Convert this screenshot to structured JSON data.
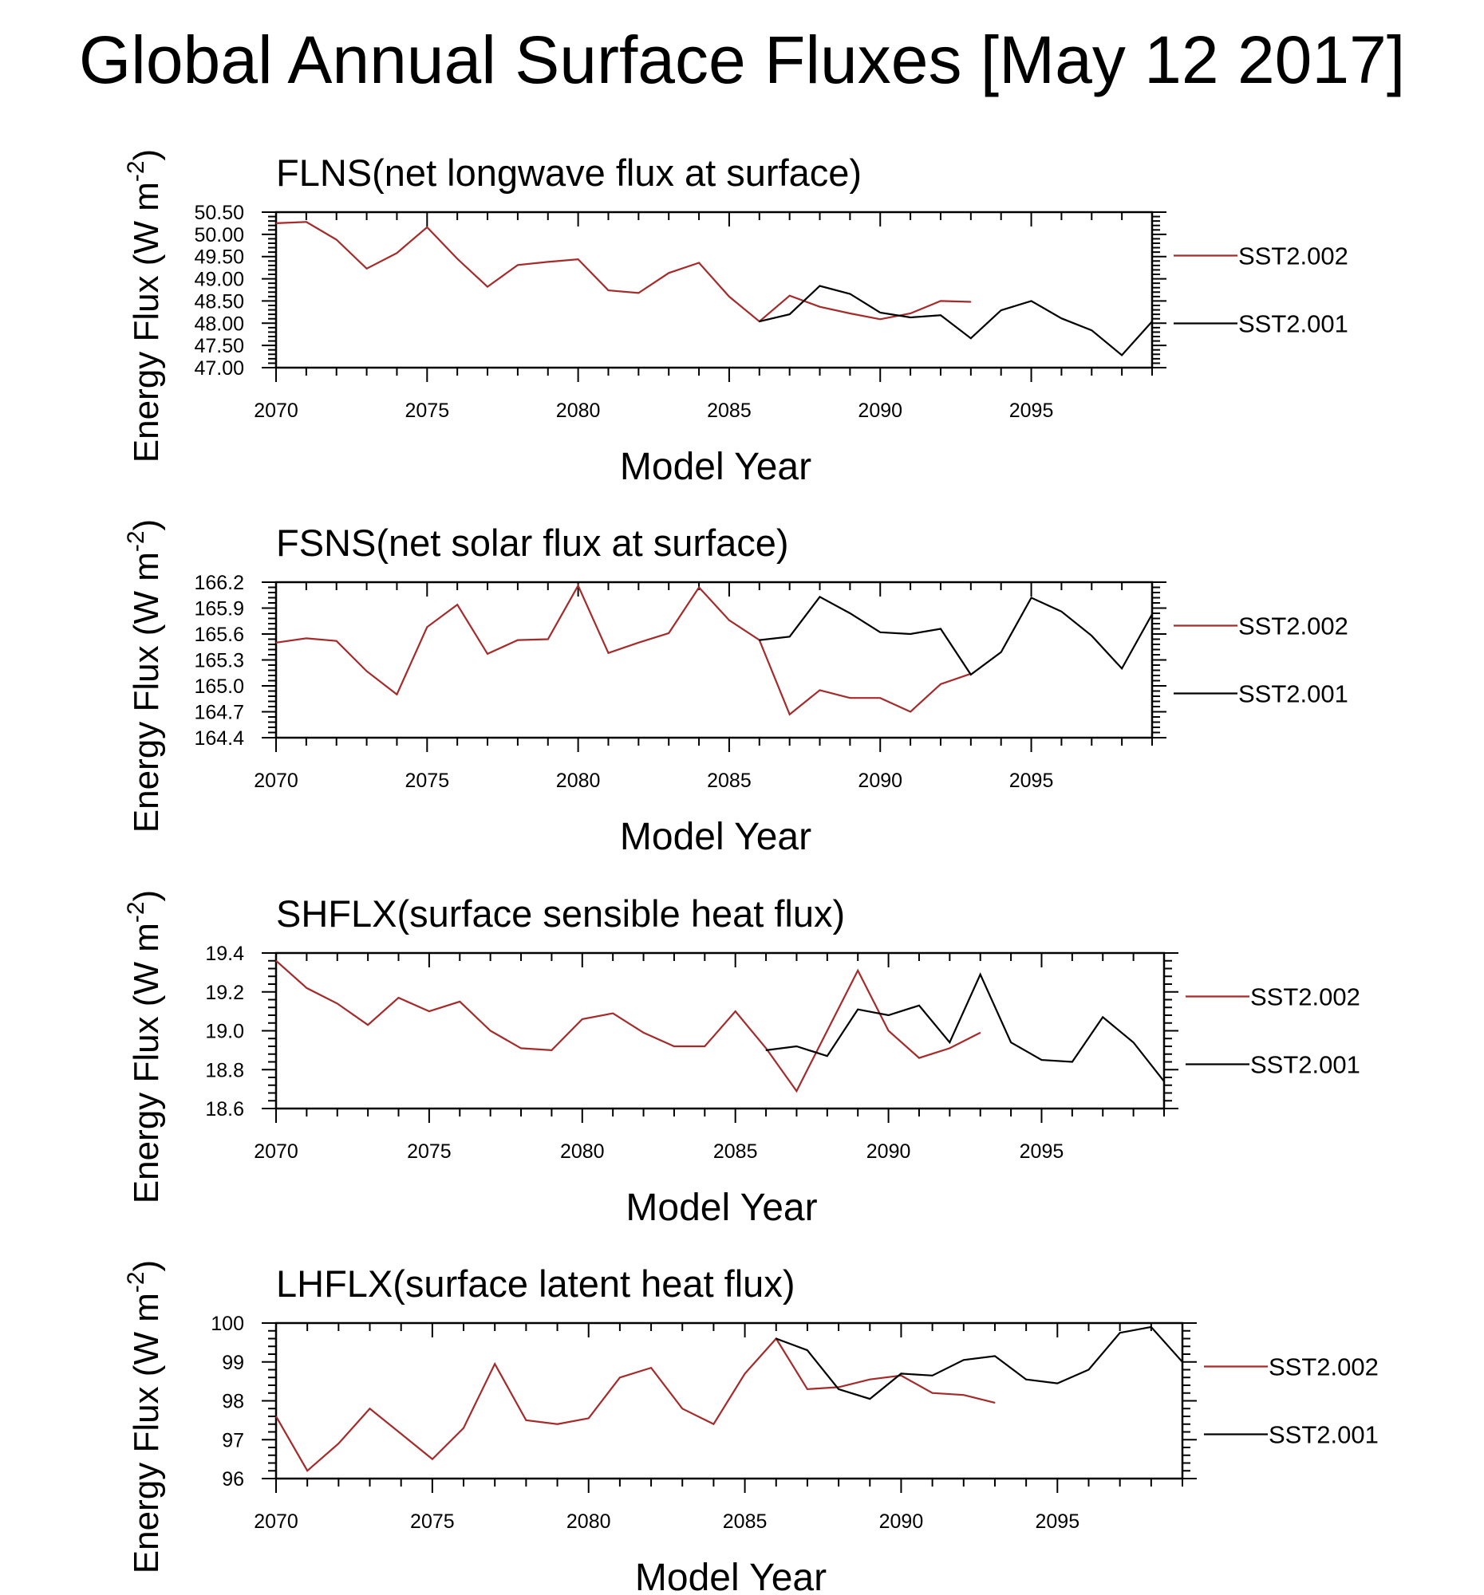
{
  "figure": {
    "title": "Global Annual Surface Fluxes [May 12 2017]"
  },
  "chart_data": [
    {
      "type": "line",
      "title": "FLNS(net longwave flux at surface)",
      "xlabel": "Model Year",
      "ylabel": "Energy Flux (W m-2)",
      "ylabel_main": "Energy Flux (W m",
      "ylabel_exp": "-2",
      "ylabel_close": ")",
      "xlim": [
        2070,
        2099
      ],
      "ylim": [
        47.0,
        50.5
      ],
      "xticks": [
        2070,
        2075,
        2080,
        2085,
        2090,
        2095
      ],
      "yticks": [
        47.0,
        47.5,
        48.0,
        48.5,
        49.0,
        49.5,
        50.0,
        50.5
      ],
      "ytick_labels": [
        "47.00",
        "47.50",
        "48.00",
        "48.50",
        "49.00",
        "49.50",
        "50.00",
        "50.50"
      ],
      "series": [
        {
          "name": "SST2.002",
          "color": "#a52a2a",
          "x": [
            2070,
            2071,
            2072,
            2073,
            2074,
            2075,
            2076,
            2077,
            2078,
            2079,
            2080,
            2081,
            2082,
            2083,
            2084,
            2085,
            2086,
            2087,
            2088,
            2089,
            2090,
            2091,
            2092,
            2093
          ],
          "values": [
            50.25,
            50.28,
            49.88,
            49.23,
            49.58,
            50.16,
            49.45,
            48.82,
            49.31,
            49.38,
            49.44,
            48.74,
            48.68,
            49.13,
            49.36,
            48.6,
            48.04,
            48.62,
            48.37,
            48.22,
            48.09,
            48.22,
            48.5,
            48.48
          ]
        },
        {
          "name": "SST2.001",
          "color": "#000000",
          "x": [
            2086,
            2087,
            2088,
            2089,
            2090,
            2091,
            2092,
            2093,
            2094,
            2095,
            2096,
            2097,
            2098,
            2099
          ],
          "values": [
            48.04,
            48.2,
            48.84,
            48.66,
            48.24,
            48.13,
            48.18,
            47.66,
            48.29,
            48.5,
            48.11,
            47.84,
            47.28,
            48.04
          ]
        }
      ],
      "legend": [
        "SST2.002",
        "SST2.001"
      ]
    },
    {
      "type": "line",
      "title": "FSNS(net solar flux at surface)",
      "xlabel": "Model Year",
      "ylabel": "Energy Flux (W m-2)",
      "ylabel_main": "Energy Flux (W m",
      "ylabel_exp": "-2",
      "ylabel_close": ")",
      "xlim": [
        2070,
        2099
      ],
      "ylim": [
        164.4,
        166.2
      ],
      "xticks": [
        2070,
        2075,
        2080,
        2085,
        2090,
        2095
      ],
      "yticks": [
        164.4,
        164.7,
        165.0,
        165.3,
        165.6,
        165.9,
        166.2
      ],
      "ytick_labels": [
        "164.4",
        "164.7",
        "165.0",
        "165.3",
        "165.6",
        "165.9",
        "166.2"
      ],
      "series": [
        {
          "name": "SST2.002",
          "color": "#a52a2a",
          "x": [
            2070,
            2071,
            2072,
            2073,
            2074,
            2075,
            2076,
            2077,
            2078,
            2079,
            2080,
            2081,
            2082,
            2083,
            2084,
            2085,
            2086,
            2087,
            2088,
            2089,
            2090,
            2091,
            2092,
            2093
          ],
          "values": [
            165.5,
            165.55,
            165.52,
            165.17,
            164.9,
            165.68,
            165.94,
            165.37,
            165.53,
            165.54,
            166.16,
            165.38,
            165.5,
            165.61,
            166.14,
            165.76,
            165.53,
            164.67,
            164.95,
            164.86,
            164.86,
            164.7,
            165.02,
            165.14
          ]
        },
        {
          "name": "SST2.001",
          "color": "#000000",
          "x": [
            2086,
            2087,
            2088,
            2089,
            2090,
            2091,
            2092,
            2093,
            2094,
            2095,
            2096,
            2097,
            2098,
            2099
          ],
          "values": [
            165.53,
            165.57,
            166.03,
            165.84,
            165.62,
            165.6,
            165.66,
            165.13,
            165.39,
            166.02,
            165.86,
            165.58,
            165.2,
            165.83
          ]
        }
      ],
      "legend": [
        "SST2.002",
        "SST2.001"
      ]
    },
    {
      "type": "line",
      "title": "SHFLX(surface sensible heat flux)",
      "xlabel": "Model Year",
      "ylabel": "Energy Flux (W m-2)",
      "ylabel_main": "Energy Flux (W m",
      "ylabel_exp": "-2",
      "ylabel_close": ")",
      "xlim": [
        2070,
        2099
      ],
      "ylim": [
        18.6,
        19.4
      ],
      "xticks": [
        2070,
        2075,
        2080,
        2085,
        2090,
        2095
      ],
      "yticks": [
        18.6,
        18.8,
        19.0,
        19.2,
        19.4
      ],
      "ytick_labels": [
        "18.6",
        "18.8",
        "19.0",
        "19.2",
        "19.4"
      ],
      "series": [
        {
          "name": "SST2.002",
          "color": "#a52a2a",
          "x": [
            2070,
            2071,
            2072,
            2073,
            2074,
            2075,
            2076,
            2077,
            2078,
            2079,
            2080,
            2081,
            2082,
            2083,
            2084,
            2085,
            2086,
            2087,
            2088,
            2089,
            2090,
            2091,
            2092,
            2093
          ],
          "values": [
            19.36,
            19.22,
            19.14,
            19.03,
            19.17,
            19.1,
            19.15,
            19.0,
            18.91,
            18.9,
            19.06,
            19.09,
            18.99,
            18.92,
            18.92,
            19.1,
            18.91,
            18.69,
            19.0,
            19.31,
            19.0,
            18.86,
            18.91,
            18.99
          ]
        },
        {
          "name": "SST2.001",
          "color": "#000000",
          "x": [
            2086,
            2087,
            2088,
            2089,
            2090,
            2091,
            2092,
            2093,
            2094,
            2095,
            2096,
            2097,
            2098,
            2099
          ],
          "values": [
            18.9,
            18.92,
            18.87,
            19.11,
            19.08,
            19.13,
            18.94,
            19.29,
            18.94,
            18.85,
            18.84,
            19.07,
            18.94,
            18.74
          ]
        }
      ],
      "legend": [
        "SST2.002",
        "SST2.001"
      ]
    },
    {
      "type": "line",
      "title": "LHFLX(surface latent heat flux)",
      "xlabel": "Model Year",
      "ylabel": "Energy Flux (W m-2)",
      "ylabel_main": "Energy Flux (W m",
      "ylabel_exp": "-2",
      "ylabel_close": ")",
      "xlim": [
        2070,
        2099
      ],
      "ylim": [
        96,
        100
      ],
      "xticks": [
        2070,
        2075,
        2080,
        2085,
        2090,
        2095
      ],
      "yticks": [
        96,
        97,
        98,
        99,
        100
      ],
      "ytick_labels": [
        "96",
        "97",
        "98",
        "99",
        "100"
      ],
      "series": [
        {
          "name": "SST2.002",
          "color": "#a52a2a",
          "x": [
            2070,
            2071,
            2072,
            2073,
            2074,
            2075,
            2076,
            2077,
            2078,
            2079,
            2080,
            2081,
            2082,
            2083,
            2084,
            2085,
            2086,
            2087,
            2088,
            2089,
            2090,
            2091,
            2092,
            2093
          ],
          "values": [
            97.6,
            96.2,
            96.9,
            97.8,
            97.15,
            96.5,
            97.3,
            98.95,
            97.5,
            97.4,
            97.55,
            98.6,
            98.85,
            97.8,
            97.4,
            98.7,
            99.6,
            98.3,
            98.35,
            98.55,
            98.65,
            98.2,
            98.15,
            97.95
          ]
        },
        {
          "name": "SST2.001",
          "color": "#000000",
          "x": [
            2086,
            2087,
            2088,
            2089,
            2090,
            2091,
            2092,
            2093,
            2094,
            2095,
            2096,
            2097,
            2098,
            2099
          ],
          "values": [
            99.6,
            99.3,
            98.3,
            98.05,
            98.7,
            98.65,
            99.05,
            99.15,
            98.55,
            98.45,
            98.8,
            99.75,
            99.9,
            99.0
          ]
        }
      ],
      "legend": [
        "SST2.002",
        "SST2.001"
      ]
    }
  ]
}
